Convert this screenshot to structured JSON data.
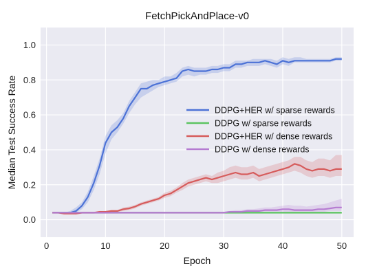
{
  "chart_data": {
    "type": "line",
    "title": "FetchPickAndPlace-v0",
    "xlabel": "Epoch",
    "ylabel": "Median Test Success Rate",
    "xlim": [
      -1,
      52
    ],
    "ylim": [
      -0.1,
      1.1
    ],
    "xticks": [
      0,
      10,
      20,
      30,
      40,
      50
    ],
    "yticks": [
      0.0,
      0.2,
      0.4,
      0.6,
      0.8,
      1.0
    ],
    "xtick_labels": [
      "0",
      "10",
      "20",
      "30",
      "40",
      "50"
    ],
    "ytick_labels": [
      "0.0",
      "0.2",
      "0.4",
      "0.6",
      "0.8",
      "1.0"
    ],
    "grid": true,
    "background": "#eaeaf2",
    "legend_position": "center-right",
    "x": [
      1,
      2,
      3,
      4,
      5,
      6,
      7,
      8,
      9,
      10,
      11,
      12,
      13,
      14,
      15,
      16,
      17,
      18,
      19,
      20,
      21,
      22,
      23,
      24,
      25,
      26,
      27,
      28,
      29,
      30,
      31,
      32,
      33,
      34,
      35,
      36,
      37,
      38,
      39,
      40,
      41,
      42,
      43,
      44,
      45,
      46,
      47,
      48,
      49,
      50
    ],
    "series": [
      {
        "name": "DDPG+HER w/ sparse rewards",
        "color": "#4c72d6",
        "values": [
          0.04,
          0.04,
          0.04,
          0.04,
          0.05,
          0.08,
          0.13,
          0.21,
          0.31,
          0.44,
          0.5,
          0.53,
          0.58,
          0.65,
          0.7,
          0.75,
          0.75,
          0.77,
          0.78,
          0.79,
          0.8,
          0.81,
          0.85,
          0.86,
          0.85,
          0.85,
          0.85,
          0.86,
          0.86,
          0.87,
          0.87,
          0.89,
          0.89,
          0.9,
          0.9,
          0.9,
          0.91,
          0.9,
          0.89,
          0.91,
          0.9,
          0.91,
          0.91,
          0.91,
          0.91,
          0.91,
          0.91,
          0.91,
          0.92,
          0.92
        ],
        "lower": [
          0.04,
          0.04,
          0.04,
          0.04,
          0.04,
          0.06,
          0.1,
          0.17,
          0.26,
          0.38,
          0.46,
          0.5,
          0.55,
          0.61,
          0.66,
          0.7,
          0.72,
          0.74,
          0.76,
          0.77,
          0.78,
          0.79,
          0.82,
          0.83,
          0.82,
          0.83,
          0.83,
          0.84,
          0.84,
          0.85,
          0.85,
          0.87,
          0.87,
          0.88,
          0.88,
          0.88,
          0.89,
          0.88,
          0.87,
          0.89,
          0.88,
          0.9,
          0.9,
          0.9,
          0.9,
          0.9,
          0.9,
          0.9,
          0.91,
          0.91
        ],
        "upper": [
          0.04,
          0.04,
          0.04,
          0.05,
          0.07,
          0.1,
          0.16,
          0.25,
          0.35,
          0.48,
          0.54,
          0.57,
          0.61,
          0.68,
          0.73,
          0.78,
          0.79,
          0.8,
          0.8,
          0.82,
          0.82,
          0.84,
          0.87,
          0.88,
          0.87,
          0.87,
          0.87,
          0.88,
          0.88,
          0.89,
          0.89,
          0.91,
          0.91,
          0.91,
          0.92,
          0.92,
          0.92,
          0.92,
          0.91,
          0.93,
          0.92,
          0.93,
          0.93,
          0.92,
          0.92,
          0.92,
          0.92,
          0.92,
          0.93,
          0.93
        ]
      },
      {
        "name": "DDPG w/ sparse rewards",
        "color": "#5cc461",
        "values": [
          0.04,
          0.04,
          0.04,
          0.04,
          0.04,
          0.04,
          0.04,
          0.04,
          0.04,
          0.04,
          0.04,
          0.04,
          0.04,
          0.04,
          0.04,
          0.04,
          0.04,
          0.04,
          0.04,
          0.04,
          0.04,
          0.04,
          0.04,
          0.04,
          0.04,
          0.04,
          0.04,
          0.04,
          0.04,
          0.04,
          0.04,
          0.04,
          0.04,
          0.04,
          0.04,
          0.04,
          0.04,
          0.04,
          0.04,
          0.04,
          0.04,
          0.04,
          0.04,
          0.04,
          0.04,
          0.04,
          0.04,
          0.04,
          0.04,
          0.04
        ],
        "lower": [
          0.035,
          0.035,
          0.035,
          0.035,
          0.035,
          0.035,
          0.035,
          0.035,
          0.035,
          0.035,
          0.035,
          0.035,
          0.035,
          0.035,
          0.035,
          0.035,
          0.035,
          0.035,
          0.035,
          0.035,
          0.035,
          0.035,
          0.035,
          0.035,
          0.035,
          0.035,
          0.035,
          0.035,
          0.035,
          0.035,
          0.035,
          0.035,
          0.035,
          0.035,
          0.035,
          0.035,
          0.035,
          0.035,
          0.035,
          0.035,
          0.035,
          0.035,
          0.035,
          0.035,
          0.035,
          0.035,
          0.035,
          0.035,
          0.035,
          0.035
        ],
        "upper": [
          0.045,
          0.045,
          0.045,
          0.045,
          0.045,
          0.045,
          0.045,
          0.045,
          0.045,
          0.045,
          0.045,
          0.045,
          0.045,
          0.045,
          0.045,
          0.045,
          0.045,
          0.045,
          0.045,
          0.045,
          0.045,
          0.045,
          0.045,
          0.045,
          0.045,
          0.045,
          0.045,
          0.045,
          0.045,
          0.045,
          0.045,
          0.045,
          0.045,
          0.045,
          0.045,
          0.045,
          0.045,
          0.045,
          0.045,
          0.045,
          0.045,
          0.045,
          0.045,
          0.045,
          0.045,
          0.045,
          0.045,
          0.045,
          0.045,
          0.045
        ]
      },
      {
        "name": "DDPG+HER w/ dense rewards",
        "color": "#d65b5b",
        "values": [
          0.04,
          0.04,
          0.035,
          0.035,
          0.035,
          0.04,
          0.04,
          0.04,
          0.045,
          0.045,
          0.05,
          0.05,
          0.06,
          0.065,
          0.075,
          0.09,
          0.1,
          0.11,
          0.12,
          0.14,
          0.15,
          0.17,
          0.19,
          0.21,
          0.22,
          0.23,
          0.24,
          0.23,
          0.24,
          0.25,
          0.26,
          0.27,
          0.26,
          0.26,
          0.27,
          0.25,
          0.26,
          0.27,
          0.28,
          0.29,
          0.3,
          0.32,
          0.31,
          0.29,
          0.28,
          0.29,
          0.29,
          0.28,
          0.29,
          0.29
        ],
        "lower": [
          0.035,
          0.035,
          0.03,
          0.03,
          0.03,
          0.035,
          0.035,
          0.035,
          0.04,
          0.04,
          0.045,
          0.045,
          0.05,
          0.055,
          0.065,
          0.08,
          0.09,
          0.1,
          0.11,
          0.125,
          0.135,
          0.155,
          0.17,
          0.19,
          0.2,
          0.21,
          0.22,
          0.21,
          0.21,
          0.22,
          0.23,
          0.24,
          0.23,
          0.23,
          0.24,
          0.22,
          0.23,
          0.24,
          0.25,
          0.26,
          0.27,
          0.28,
          0.27,
          0.25,
          0.24,
          0.25,
          0.25,
          0.24,
          0.25,
          0.25
        ],
        "upper": [
          0.045,
          0.045,
          0.04,
          0.04,
          0.04,
          0.045,
          0.045,
          0.045,
          0.05,
          0.05,
          0.055,
          0.055,
          0.07,
          0.075,
          0.085,
          0.1,
          0.11,
          0.12,
          0.13,
          0.155,
          0.165,
          0.185,
          0.21,
          0.23,
          0.24,
          0.25,
          0.26,
          0.25,
          0.27,
          0.28,
          0.3,
          0.31,
          0.3,
          0.3,
          0.31,
          0.29,
          0.3,
          0.31,
          0.32,
          0.33,
          0.34,
          0.36,
          0.36,
          0.34,
          0.33,
          0.35,
          0.35,
          0.34,
          0.37,
          0.37
        ]
      },
      {
        "name": "DDPG w/ dense rewards",
        "color": "#b57bd1",
        "values": [
          0.04,
          0.04,
          0.04,
          0.04,
          0.04,
          0.04,
          0.04,
          0.04,
          0.04,
          0.04,
          0.04,
          0.04,
          0.04,
          0.04,
          0.04,
          0.04,
          0.04,
          0.04,
          0.04,
          0.04,
          0.04,
          0.04,
          0.04,
          0.04,
          0.04,
          0.04,
          0.04,
          0.04,
          0.04,
          0.04,
          0.045,
          0.045,
          0.045,
          0.05,
          0.05,
          0.05,
          0.055,
          0.055,
          0.055,
          0.06,
          0.06,
          0.055,
          0.055,
          0.055,
          0.055,
          0.06,
          0.06,
          0.065,
          0.07,
          0.07
        ],
        "lower": [
          0.035,
          0.035,
          0.035,
          0.035,
          0.035,
          0.035,
          0.035,
          0.035,
          0.035,
          0.035,
          0.035,
          0.035,
          0.035,
          0.035,
          0.035,
          0.035,
          0.035,
          0.035,
          0.035,
          0.035,
          0.035,
          0.035,
          0.035,
          0.035,
          0.035,
          0.035,
          0.035,
          0.035,
          0.035,
          0.035,
          0.04,
          0.04,
          0.04,
          0.04,
          0.04,
          0.04,
          0.045,
          0.045,
          0.045,
          0.045,
          0.045,
          0.045,
          0.045,
          0.045,
          0.045,
          0.045,
          0.045,
          0.05,
          0.05,
          0.05
        ],
        "upper": [
          0.045,
          0.045,
          0.045,
          0.045,
          0.045,
          0.045,
          0.045,
          0.045,
          0.045,
          0.045,
          0.045,
          0.045,
          0.045,
          0.045,
          0.045,
          0.045,
          0.045,
          0.045,
          0.045,
          0.045,
          0.045,
          0.045,
          0.045,
          0.045,
          0.045,
          0.045,
          0.045,
          0.045,
          0.045,
          0.045,
          0.05,
          0.055,
          0.055,
          0.06,
          0.06,
          0.065,
          0.07,
          0.07,
          0.075,
          0.08,
          0.085,
          0.08,
          0.08,
          0.075,
          0.08,
          0.085,
          0.09,
          0.1,
          0.11,
          0.12
        ]
      }
    ]
  }
}
